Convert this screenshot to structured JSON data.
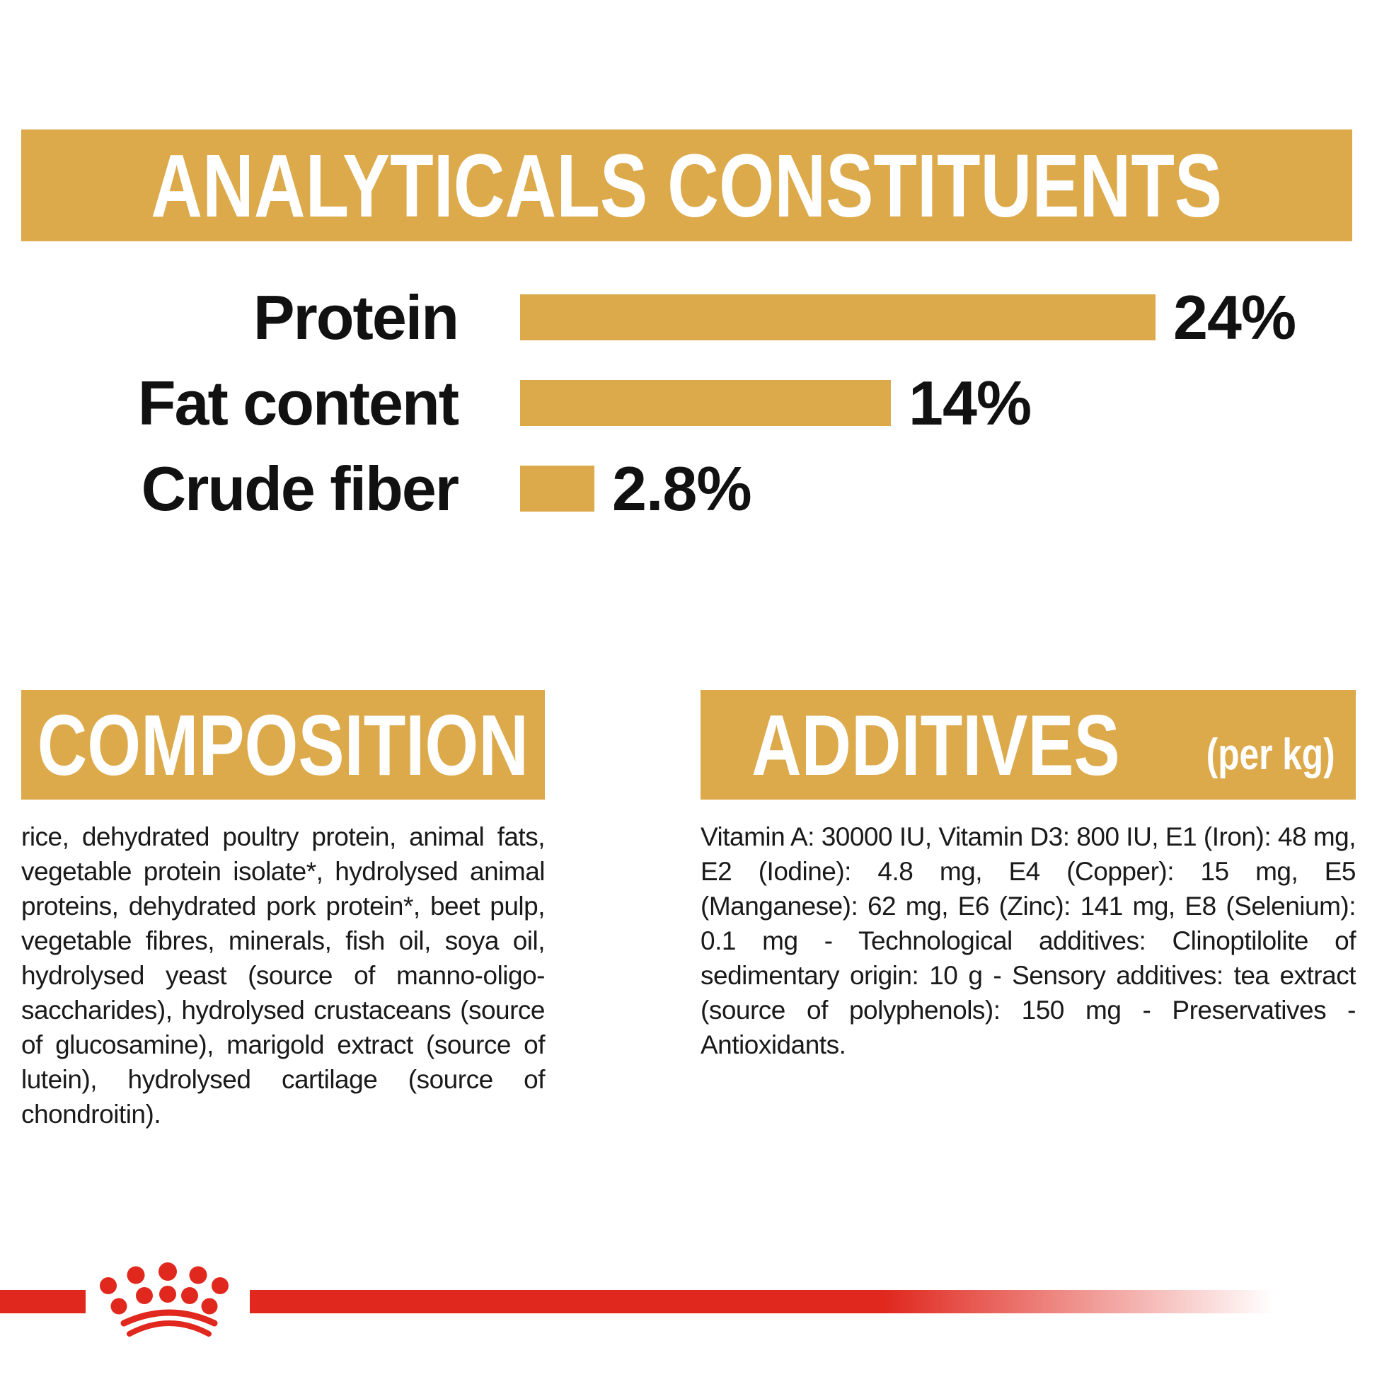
{
  "colors": {
    "gold": "#DCA94B",
    "red": "#E0281E",
    "text": "#1A1A1A",
    "background": "#FFFFFF"
  },
  "analyticals": {
    "title": "ANALYTICALS CONSTITUENTS"
  },
  "chart_data": {
    "type": "bar",
    "orientation": "horizontal",
    "title": "ANALYTICALS CONSTITUENTS",
    "categories": [
      "Protein",
      "Fat content",
      "Crude fiber"
    ],
    "values": [
      24,
      14,
      2.8
    ],
    "value_labels": [
      "24%",
      "14%",
      "2.8%"
    ],
    "unit": "%",
    "xlim": [
      0,
      24
    ],
    "bar_color": "#DCA94B",
    "grid": false,
    "legend": false
  },
  "composition": {
    "title": "COMPOSITION",
    "body": "rice, dehydrated poultry protein, animal fats, vegetable protein isolate*, hydrolysed animal proteins, dehydrated pork protein*, beet pulp, vegetable fibres, minerals, fish oil, soya oil, hydrolysed yeast (source of manno-oligo-saccharides), hydrolysed crustaceans (source of glucosamine), marigold extract (source of lutein), hydrolysed cartilage (source of chondroitin)."
  },
  "additives": {
    "title": "ADDITIVES",
    "unit_label": "(per kg)",
    "body": "Vitamin A: 30000 IU, Vitamin D3: 800 IU, E1 (Iron): 48 mg, E2 (Iodine): 4.8 mg, E4 (Copper): 15 mg, E5 (Manganese): 62 mg, E6 (Zinc): 141 mg, E8 (Selenium): 0.1 mg - Technological additives: Clinoptilolite of sedimentary origin: 10 g - Sensory additives: tea extract (source of polyphenols): 150 mg - Preservatives - Antioxidants.",
    "footnote_marker": "*"
  },
  "footer": {
    "logo": "royal-canin-crown"
  }
}
